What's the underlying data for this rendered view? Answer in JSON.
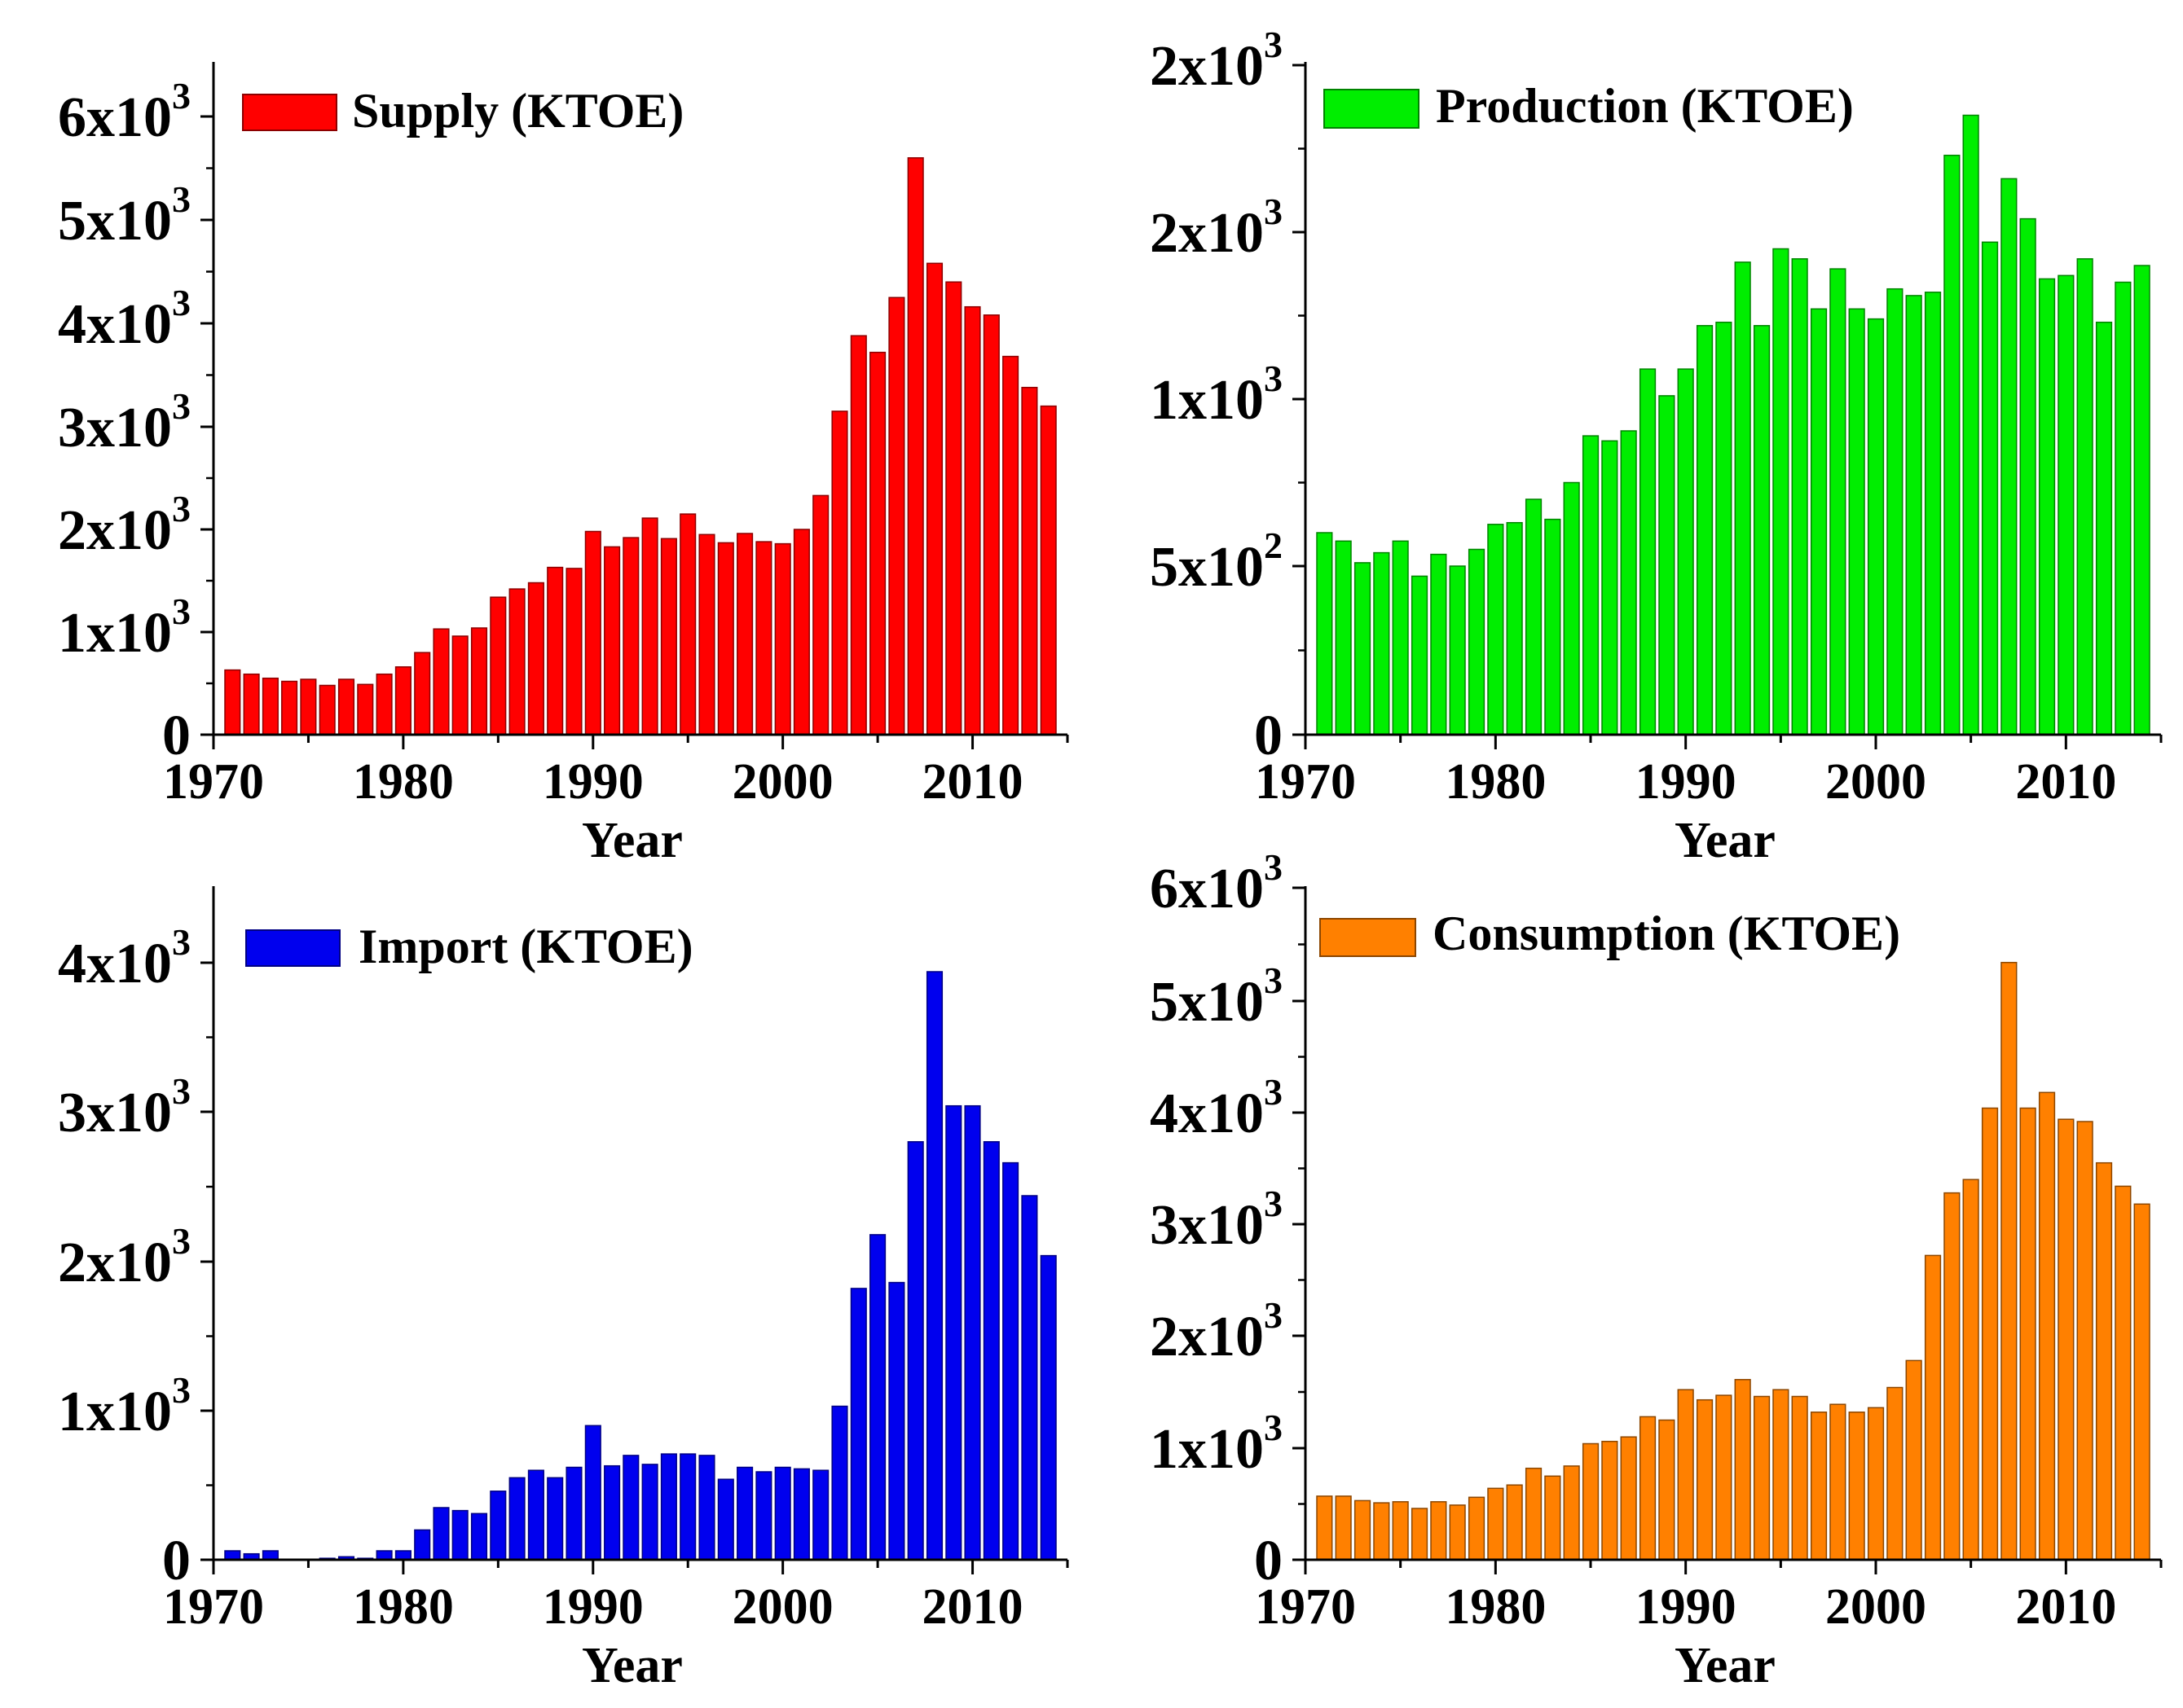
{
  "chart_data": [
    {
      "type": "bar",
      "title": "",
      "legend": "Supply (KTOE)",
      "legend_position": "top-left",
      "color": "#ff0000",
      "xlabel": "Year",
      "ylabel": "",
      "xlim": [
        1970,
        2015
      ],
      "ylim": [
        0,
        6500
      ],
      "x_ticks": [
        "1970",
        "1980",
        "1990",
        "2000",
        "2010"
      ],
      "y_ticks": [
        {
          "value": 0,
          "mantissa": "0",
          "exp": ""
        },
        {
          "value": 1000,
          "mantissa": "1x10",
          "exp": "3"
        },
        {
          "value": 2000,
          "mantissa": "2x10",
          "exp": "3"
        },
        {
          "value": 3000,
          "mantissa": "3x10",
          "exp": "3"
        },
        {
          "value": 4000,
          "mantissa": "4x10",
          "exp": "3"
        },
        {
          "value": 5000,
          "mantissa": "5x10",
          "exp": "3"
        },
        {
          "value": 6000,
          "mantissa": "6x10",
          "exp": "3"
        }
      ],
      "x": [
        1971,
        1972,
        1973,
        1974,
        1975,
        1976,
        1977,
        1978,
        1979,
        1980,
        1981,
        1982,
        1983,
        1984,
        1985,
        1986,
        1987,
        1988,
        1989,
        1990,
        1991,
        1992,
        1993,
        1994,
        1995,
        1996,
        1997,
        1998,
        1999,
        2000,
        2001,
        2002,
        2003,
        2004,
        2005,
        2006,
        2007,
        2008,
        2009,
        2010,
        2011,
        2012,
        2013,
        2014
      ],
      "values": [
        630,
        590,
        550,
        520,
        540,
        480,
        540,
        490,
        590,
        660,
        800,
        1030,
        960,
        1040,
        1340,
        1420,
        1480,
        1630,
        1620,
        1980,
        1830,
        1920,
        2110,
        1910,
        2150,
        1950,
        1870,
        1960,
        1880,
        1860,
        2000,
        2330,
        3150,
        3880,
        3720,
        4250,
        5600,
        4580,
        4400,
        4160,
        4080,
        3680,
        3380,
        3200
      ]
    },
    {
      "type": "bar",
      "title": "",
      "legend": "Production (KTOE)",
      "legend_position": "top-left",
      "color": "#00ee00",
      "xlabel": "Year",
      "ylabel": "",
      "xlim": [
        1970,
        2015
      ],
      "ylim": [
        0,
        2000
      ],
      "x_ticks": [
        "1970",
        "1980",
        "1990",
        "2000",
        "2010"
      ],
      "y_ticks": [
        {
          "value": 0,
          "mantissa": "0",
          "exp": ""
        },
        {
          "value": 500,
          "mantissa": "5x10",
          "exp": "2"
        },
        {
          "value": 1000,
          "mantissa": "1x10",
          "exp": "3"
        },
        {
          "value": 1500,
          "mantissa": "2x10",
          "exp": "3"
        },
        {
          "value": 2000,
          "mantissa": "2x10",
          "exp": "3"
        }
      ],
      "x": [
        1971,
        1972,
        1973,
        1974,
        1975,
        1976,
        1977,
        1978,
        1979,
        1980,
        1981,
        1982,
        1983,
        1984,
        1985,
        1986,
        1987,
        1988,
        1989,
        1990,
        1991,
        1992,
        1993,
        1994,
        1995,
        1996,
        1997,
        1998,
        1999,
        2000,
        2001,
        2002,
        2003,
        2004,
        2005,
        2006,
        2007,
        2008,
        2009,
        2010,
        2011,
        2012,
        2013,
        2014
      ],
      "values": [
        600,
        575,
        510,
        540,
        575,
        470,
        535,
        500,
        550,
        625,
        630,
        700,
        640,
        750,
        890,
        875,
        905,
        1090,
        1010,
        1090,
        1220,
        1230,
        1410,
        1220,
        1450,
        1420,
        1270,
        1390,
        1270,
        1240,
        1330,
        1310,
        1320,
        1730,
        1850,
        1470,
        1660,
        1540,
        1360,
        1370,
        1420,
        1230,
        1350,
        1400
      ]
    },
    {
      "type": "bar",
      "title": "",
      "legend": "Import (KTOE)",
      "legend_position": "top-left",
      "color": "#0000ee",
      "xlabel": "Year",
      "ylabel": "",
      "xlim": [
        1970,
        2015
      ],
      "ylim": [
        0,
        4500
      ],
      "x_ticks": [
        "1970",
        "1980",
        "1990",
        "2000",
        "2010"
      ],
      "y_ticks": [
        {
          "value": 0,
          "mantissa": "0",
          "exp": ""
        },
        {
          "value": 1000,
          "mantissa": "1x10",
          "exp": "3"
        },
        {
          "value": 2000,
          "mantissa": "2x10",
          "exp": "3"
        },
        {
          "value": 3000,
          "mantissa": "3x10",
          "exp": "3"
        },
        {
          "value": 4000,
          "mantissa": "4x10",
          "exp": "3"
        }
      ],
      "x": [
        1971,
        1972,
        1973,
        1974,
        1975,
        1976,
        1977,
        1978,
        1979,
        1980,
        1981,
        1982,
        1983,
        1984,
        1985,
        1986,
        1987,
        1988,
        1989,
        1990,
        1991,
        1992,
        1993,
        1994,
        1995,
        1996,
        1997,
        1998,
        1999,
        2000,
        2001,
        2002,
        2003,
        2004,
        2005,
        2006,
        2007,
        2008,
        2009,
        2010,
        2011,
        2012,
        2013,
        2014
      ],
      "values": [
        60,
        40,
        60,
        0,
        0,
        10,
        20,
        10,
        60,
        60,
        200,
        350,
        330,
        310,
        460,
        550,
        600,
        550,
        620,
        900,
        630,
        700,
        640,
        710,
        710,
        700,
        540,
        620,
        590,
        620,
        610,
        600,
        1030,
        1820,
        2180,
        1860,
        2800,
        3940,
        3040,
        3040,
        2800,
        2660,
        2440,
        2040
      ]
    },
    {
      "type": "bar",
      "title": "",
      "legend": "Consumption (KTOE)",
      "legend_position": "top-left",
      "color": "#ff8000",
      "xlabel": "Year",
      "ylabel": "",
      "xlim": [
        1970,
        2015
      ],
      "ylim": [
        0,
        6000
      ],
      "x_ticks": [
        "1970",
        "1980",
        "1990",
        "2000",
        "2010"
      ],
      "y_ticks": [
        {
          "value": 0,
          "mantissa": "0",
          "exp": ""
        },
        {
          "value": 1000,
          "mantissa": "1x10",
          "exp": "3"
        },
        {
          "value": 2000,
          "mantissa": "2x10",
          "exp": "3"
        },
        {
          "value": 3000,
          "mantissa": "3x10",
          "exp": "3"
        },
        {
          "value": 4000,
          "mantissa": "4x10",
          "exp": "3"
        },
        {
          "value": 5000,
          "mantissa": "5x10",
          "exp": "3"
        },
        {
          "value": 6000,
          "mantissa": "6x10",
          "exp": "3"
        }
      ],
      "x": [
        1971,
        1972,
        1973,
        1974,
        1975,
        1976,
        1977,
        1978,
        1979,
        1980,
        1981,
        1982,
        1983,
        1984,
        1985,
        1986,
        1987,
        1988,
        1989,
        1990,
        1991,
        1992,
        1993,
        1994,
        1995,
        1996,
        1997,
        1998,
        1999,
        2000,
        2001,
        2002,
        2003,
        2004,
        2005,
        2006,
        2007,
        2008,
        2009,
        2010,
        2011,
        2012,
        2013,
        2014
      ],
      "values": [
        570,
        570,
        530,
        510,
        520,
        460,
        520,
        490,
        560,
        640,
        670,
        820,
        750,
        840,
        1040,
        1060,
        1100,
        1280,
        1250,
        1520,
        1430,
        1470,
        1610,
        1460,
        1520,
        1460,
        1320,
        1390,
        1320,
        1360,
        1540,
        1780,
        2720,
        3280,
        3400,
        4040,
        5340,
        4040,
        4180,
        3940,
        3920,
        3550,
        3340,
        3180
      ]
    }
  ]
}
